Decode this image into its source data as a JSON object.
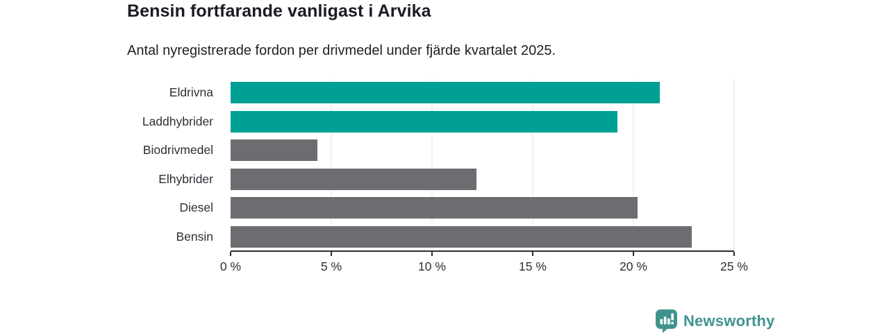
{
  "header": {
    "title": "Bensin fortfarande vanligast i Arvika",
    "subtitle": "Antal nyregistrerade fordon per drivmedel under fjärde kvartalet 2025."
  },
  "chart_data": {
    "type": "bar",
    "orientation": "horizontal",
    "title": "Bensin fortfarande vanligast i Arvika",
    "subtitle": "Antal nyregistrerade fordon per drivmedel under fjärde kvartalet 2025.",
    "categories": [
      "Eldrivna",
      "Laddhybrider",
      "Biodrivmedel",
      "Elhybrider",
      "Diesel",
      "Bensin"
    ],
    "values": [
      21.3,
      19.2,
      4.3,
      12.2,
      20.2,
      22.9
    ],
    "unit": "%",
    "bar_colors": [
      "#00a096",
      "#00a096",
      "#6c6c71",
      "#6c6c71",
      "#6c6c71",
      "#6c6c71"
    ],
    "highlighted_categories": [
      "Eldrivna",
      "Laddhybrider"
    ],
    "xlim": [
      0,
      25
    ],
    "x_tick_values": [
      0,
      5,
      10,
      15,
      20,
      25
    ],
    "x_tick_labels": [
      "0 %",
      "5 %",
      "10 %",
      "15 %",
      "20 %",
      "25 %"
    ],
    "ylabel": "",
    "xlabel": "",
    "grid": "vertical",
    "legend": "none"
  },
  "colors": {
    "highlight_bar": "#00a096",
    "default_bar": "#6c6c71",
    "gridline": "#e3e3e5",
    "axis": "#2d2d31",
    "brand_teal": "#3f948e"
  },
  "footer": {
    "brand": "Newsworthy",
    "logo_icon": "bar-chart-pin-icon"
  }
}
